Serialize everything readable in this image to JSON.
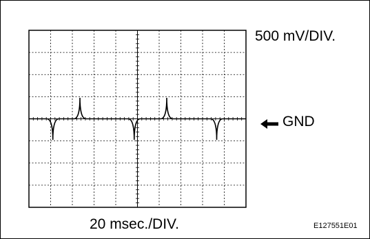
{
  "labels": {
    "volts_per_div": "500 mV/DIV.",
    "ground": "GND",
    "time_per_div": "20 msec./DIV.",
    "figure_code": "E127551E01"
  },
  "icons": {
    "ground_marker": "left-arrow-icon"
  },
  "colors": {
    "ink": "#000000",
    "background": "#ffffff"
  },
  "scope": {
    "divisions_x": 10,
    "divisions_y": 8,
    "ground_division_from_top": 4,
    "signal": {
      "baseline_divisions": 0,
      "spikes": [
        {
          "time_div": 2.35,
          "direction": "up",
          "height_div": 0.95
        },
        {
          "time_div": 6.35,
          "direction": "up",
          "height_div": 0.95
        },
        {
          "time_div": 1.1,
          "direction": "down",
          "height_div": 0.95
        },
        {
          "time_div": 4.85,
          "direction": "down",
          "height_div": 0.95
        },
        {
          "time_div": 8.65,
          "direction": "down",
          "height_div": 0.95
        }
      ]
    }
  }
}
